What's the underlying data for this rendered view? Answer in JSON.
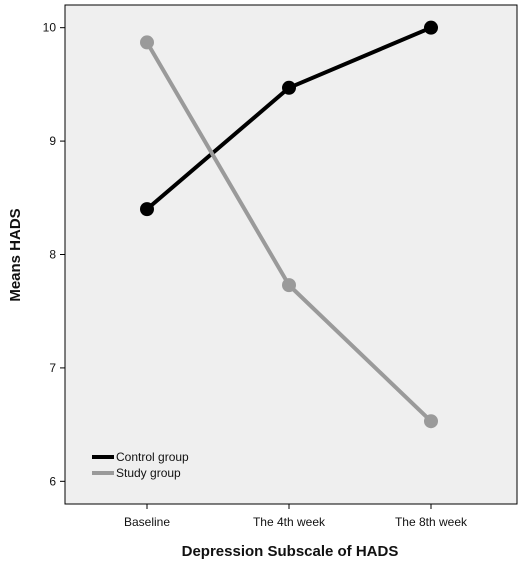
{
  "chart_data": {
    "type": "line",
    "categories": [
      "Baseline",
      "The 4th week",
      "The 8th week"
    ],
    "series": [
      {
        "name": "Control group",
        "values": [
          8.4,
          9.47,
          10.0
        ],
        "color": "#000000"
      },
      {
        "name": "Study group",
        "values": [
          9.87,
          7.73,
          6.53
        ],
        "color": "#9a9a9a"
      }
    ],
    "xlabel": "Depression Subscale of HADS",
    "ylabel": "Means HADS",
    "ylim": [
      5.8,
      10.2
    ],
    "yticks": [
      "6",
      "7",
      "8",
      "9",
      "10"
    ],
    "grid": false,
    "legend_position": "bottom-left",
    "plot_background": "#efefef"
  }
}
